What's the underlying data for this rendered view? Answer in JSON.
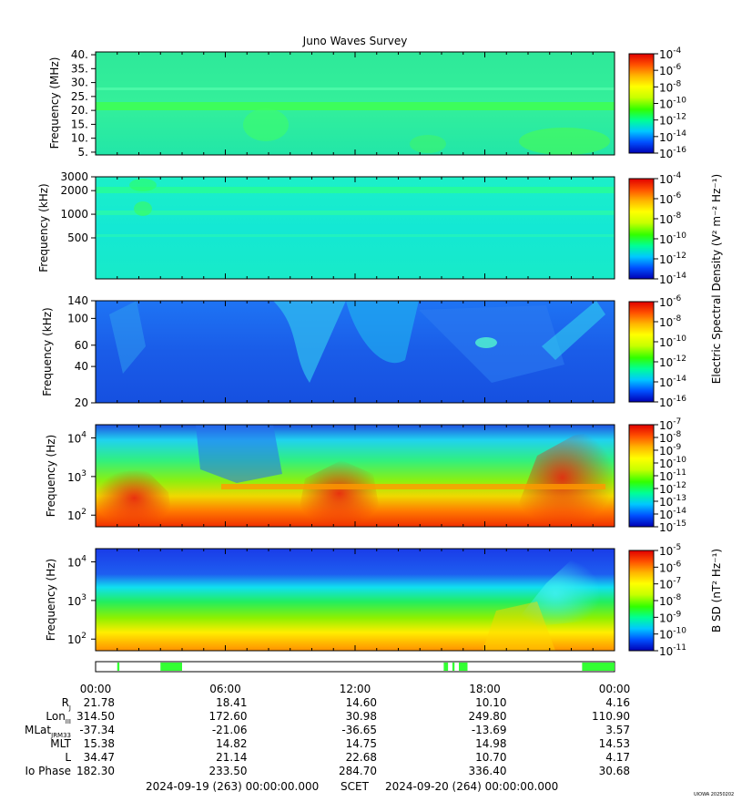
{
  "title": "Juno Waves Survey",
  "footer": {
    "start": "2024-09-19 (263) 00:00:00.000",
    "mid": "SCET",
    "end": "2024-09-20 (264) 00:00:00.000",
    "credit": "UIOWA 20250202"
  },
  "colorbar_labels": {
    "electric": "Electric Spectral Density (V² m⁻² Hz⁻¹)",
    "magnetic": "B SD (nT² Hz⁻¹)"
  },
  "colors": [
    "#0000b4",
    "#0050ff",
    "#00c8ff",
    "#00ff96",
    "#32ff00",
    "#c8ff00",
    "#ffff00",
    "#ffb400",
    "#ff5000",
    "#e10000"
  ],
  "chart_data": [
    {
      "type": "heatmap",
      "panel": "hf",
      "ylabel": "Frequency (MHz)",
      "yticks": [
        "40.",
        "35.",
        "30.",
        "25.",
        "20.",
        "15.",
        "10.",
        "5."
      ],
      "ylim": [
        4,
        41
      ],
      "colorbar": {
        "min_exp": -16,
        "max_exp": -4,
        "ticks": [
          "-4",
          "-6",
          "-8",
          "-10",
          "-12",
          "-14",
          "-16"
        ]
      },
      "dominant": "green-cyan background with a bright band near 21 MHz"
    },
    {
      "type": "heatmap",
      "panel": "mf",
      "ylabel": "Frequency (kHz)",
      "yticks": [
        "3000",
        "2000",
        "1000",
        "500"
      ],
      "colorbar": {
        "min_exp": -14,
        "max_exp": -4,
        "ticks": [
          "-4",
          "-6",
          "-8",
          "-10",
          "-12",
          "-14"
        ]
      },
      "dominant": "cyan background with bands near 2000 kHz and 1000 kHz"
    },
    {
      "type": "heatmap",
      "panel": "lf",
      "ylabel": "Frequency (kHz)",
      "yticks": [
        "140",
        "100",
        "60",
        "40",
        "20"
      ],
      "colorbar": {
        "min_exp": -16,
        "max_exp": -6,
        "ticks": [
          "-6",
          "-8",
          "-10",
          "-12",
          "-14",
          "-16"
        ]
      },
      "dominant": "blue background with cyan emission streaks"
    },
    {
      "type": "heatmap",
      "panel": "e-lowfreq",
      "ylabel": "Frequency (Hz)",
      "yticks": [
        "4",
        "3",
        "2"
      ],
      "colorbar": {
        "min_exp": -15,
        "max_exp": -7,
        "ticks": [
          "-7",
          "-8",
          "-9",
          "-10",
          "-11",
          "-12",
          "-13",
          "-14",
          "-15"
        ]
      },
      "dominant": "red/yellow intense emission below ~1 kHz, green/cyan above"
    },
    {
      "type": "heatmap",
      "panel": "b-lowfreq",
      "ylabel": "Frequency (Hz)",
      "yticks": [
        "4",
        "3",
        "2"
      ],
      "colorbar": {
        "min_exp": -11,
        "max_exp": -5,
        "ticks": [
          "-5",
          "-6",
          "-7",
          "-8",
          "-9",
          "-10",
          "-11"
        ]
      },
      "dominant": "horizontal bands from blue at top to orange at bottom"
    }
  ],
  "x_ticks": [
    "00:00",
    "06:00",
    "12:00",
    "18:00",
    "00:00"
  ],
  "ephemeris": {
    "rows": [
      {
        "label": "R",
        "sub": "J",
        "values": [
          "21.78",
          "18.41",
          "14.60",
          "10.10",
          "4.16"
        ]
      },
      {
        "label": "Lon",
        "sub": "III",
        "values": [
          "314.50",
          "172.60",
          "30.98",
          "249.80",
          "110.90"
        ]
      },
      {
        "label": "MLat",
        "sub": "JRM33",
        "values": [
          "-37.34",
          "-21.06",
          "-36.65",
          "-13.69",
          "3.57"
        ]
      },
      {
        "label": "MLT",
        "sub": "",
        "values": [
          "15.38",
          "14.82",
          "14.75",
          "14.98",
          "14.53"
        ]
      },
      {
        "label": "L",
        "sub": "",
        "values": [
          "34.47",
          "21.14",
          "22.68",
          "10.70",
          "4.17"
        ]
      },
      {
        "label": "Io Phase",
        "sub": "",
        "values": [
          "182.30",
          "233.50",
          "284.70",
          "336.40",
          "30.68"
        ]
      }
    ]
  },
  "mode_bar": {
    "color": "#33ff33",
    "active_hours": [
      [
        1.0,
        1.1
      ],
      [
        3.0,
        4.0
      ],
      [
        16.1,
        16.3
      ],
      [
        16.5,
        16.6
      ],
      [
        16.8,
        17.2
      ],
      [
        22.5,
        24.0
      ]
    ]
  }
}
